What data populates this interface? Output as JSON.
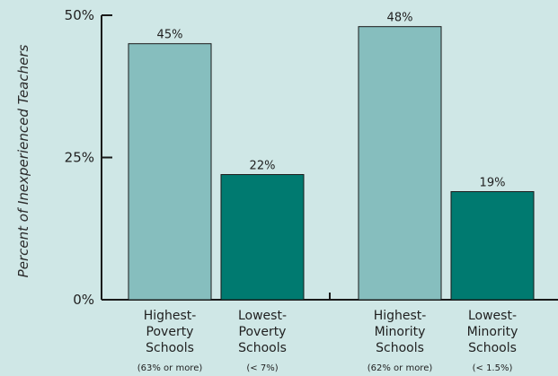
{
  "chart_data": {
    "type": "bar",
    "ylabel": "Percent of Inexperienced Teachers",
    "ylim": [
      0,
      50
    ],
    "yticks": [
      {
        "value": 0,
        "label": "0%"
      },
      {
        "value": 25,
        "label": "25%"
      },
      {
        "value": 50,
        "label": "50%"
      }
    ],
    "categories": [
      {
        "lines": [
          "Highest-",
          "Poverty",
          "Schools"
        ],
        "sub": "(63% or more)"
      },
      {
        "lines": [
          "Lowest-",
          "Poverty",
          "Schools"
        ],
        "sub": "(< 7%)"
      },
      {
        "lines": [
          "Highest-",
          "Minority",
          "Schools"
        ],
        "sub": "(62% or more)"
      },
      {
        "lines": [
          "Lowest-",
          "Minority",
          "Schools"
        ],
        "sub": "(< 1.5%)"
      }
    ],
    "values": [
      45,
      22,
      48,
      19
    ],
    "value_labels": [
      "45%",
      "22%",
      "48%",
      "19%"
    ],
    "bar_colors": [
      "#86bebe",
      "#007a70",
      "#86bebe",
      "#007a70"
    ],
    "background": "#cfe7e6",
    "grid": false
  }
}
